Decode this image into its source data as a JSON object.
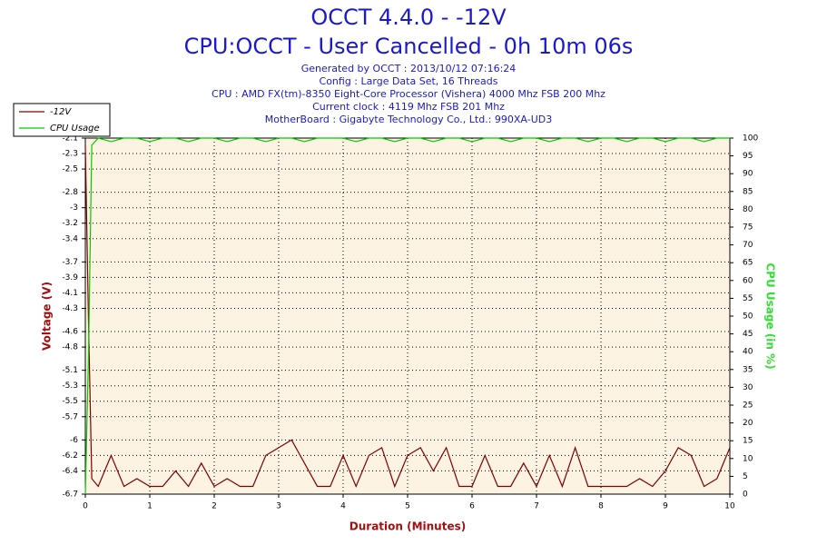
{
  "chart_data": {
    "type": "line",
    "title": "OCCT 4.4.0 - -12V",
    "subtitle": "CPU:OCCT - User Cancelled - 0h 10m 06s",
    "info": [
      "Generated by OCCT : 2013/10/12 07:16:24",
      "Config : Large Data Set, 16 Threads",
      "CPU : AMD FX(tm)-8350 Eight-Core Processor (Vishera) 4000 Mhz FSB 200 Mhz",
      "Current clock : 4119 Mhz FSB 201 Mhz",
      "MotherBoard : Gigabyte Technology Co., Ltd.: 990XA-UD3"
    ],
    "x_label": "Duration (Minutes)",
    "y_label": "Voltage (V)",
    "y2_label": "CPU Usage (in %)",
    "xlim": [
      0,
      10
    ],
    "xticks": [
      0,
      1,
      2,
      3,
      4,
      5,
      6,
      7,
      8,
      9,
      10
    ],
    "ylim": [
      -6.7,
      -2.1
    ],
    "yticks": [
      -2.1,
      -2.3,
      -2.5,
      -2.8,
      -3.0,
      -3.2,
      -3.4,
      -3.7,
      -3.9,
      -4.1,
      -4.3,
      -4.6,
      -4.8,
      -5.1,
      -5.3,
      -5.5,
      -5.7,
      -6.0,
      -6.2,
      -6.4,
      -6.7
    ],
    "y2lim": [
      0,
      100
    ],
    "y2ticks": [
      0,
      5,
      10,
      15,
      20,
      25,
      30,
      35,
      40,
      45,
      50,
      55,
      60,
      65,
      70,
      75,
      80,
      85,
      90,
      95,
      100
    ],
    "grid": true,
    "legend": "top-left",
    "x": [
      0,
      0.05,
      0.1,
      0.2,
      0.4,
      0.6,
      0.8,
      1.0,
      1.2,
      1.4,
      1.6,
      1.8,
      2.0,
      2.2,
      2.4,
      2.6,
      2.8,
      3.0,
      3.2,
      3.4,
      3.6,
      3.8,
      4.0,
      4.2,
      4.4,
      4.6,
      4.8,
      5.0,
      5.2,
      5.4,
      5.6,
      5.8,
      6.0,
      6.2,
      6.4,
      6.6,
      6.8,
      7.0,
      7.2,
      7.4,
      7.6,
      7.8,
      8.0,
      8.2,
      8.4,
      8.6,
      8.8,
      9.0,
      9.2,
      9.4,
      9.6,
      9.8,
      10.0
    ],
    "series": [
      {
        "name": "-12V",
        "color": "#800000",
        "axis": "y",
        "values": [
          -2.2,
          -4.5,
          -6.5,
          -6.6,
          -6.2,
          -6.6,
          -6.5,
          -6.6,
          -6.6,
          -6.4,
          -6.6,
          -6.3,
          -6.6,
          -6.5,
          -6.6,
          -6.6,
          -6.2,
          -6.1,
          -6.0,
          -6.3,
          -6.6,
          -6.6,
          -6.2,
          -6.6,
          -6.2,
          -6.1,
          -6.6,
          -6.2,
          -6.1,
          -6.4,
          -6.1,
          -6.6,
          -6.6,
          -6.2,
          -6.6,
          -6.6,
          -6.3,
          -6.6,
          -6.2,
          -6.6,
          -6.1,
          -6.6,
          -6.6,
          -6.6,
          -6.6,
          -6.5,
          -6.6,
          -6.4,
          -6.1,
          -6.2,
          -6.6,
          -6.5,
          -6.1
        ]
      },
      {
        "name": "CPU Usage",
        "color": "#00cc00",
        "axis": "y2",
        "values": [
          0,
          40,
          98,
          100,
          99,
          100,
          100,
          99,
          100,
          100,
          99,
          100,
          100,
          99,
          100,
          100,
          99,
          100,
          100,
          99,
          100,
          100,
          100,
          99,
          100,
          100,
          99,
          100,
          100,
          99,
          100,
          100,
          99,
          100,
          100,
          99,
          100,
          100,
          99,
          100,
          100,
          99,
          100,
          100,
          99,
          100,
          100,
          99,
          100,
          100,
          99,
          100,
          100
        ]
      }
    ]
  }
}
